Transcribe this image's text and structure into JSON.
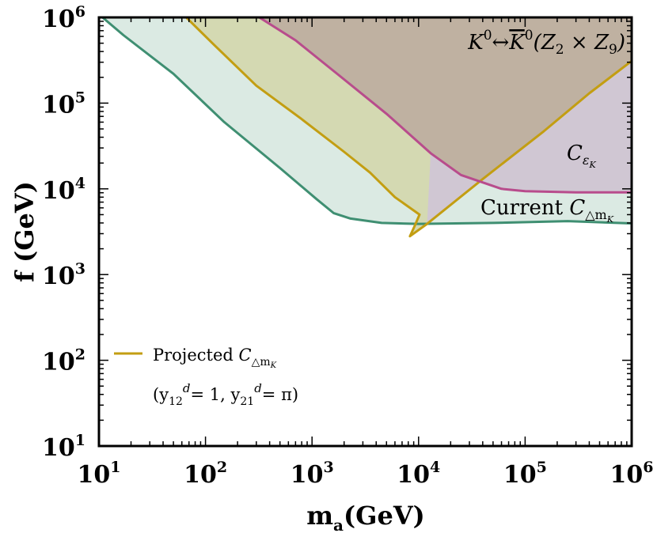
{
  "chart_data": {
    "type": "area",
    "title": "",
    "xlabel": "m",
    "xlabel_sub": "a",
    "xlabel_unit": "(GeV)",
    "ylabel": "f (GeV)",
    "xscale": "log",
    "yscale": "log",
    "xlim": [
      10,
      1000000
    ],
    "ylim": [
      10,
      1000000
    ],
    "x_tick_labels": [
      {
        "base": "10",
        "exp": "1",
        "value": 10
      },
      {
        "base": "10",
        "exp": "2",
        "value": 100
      },
      {
        "base": "10",
        "exp": "3",
        "value": 1000
      },
      {
        "base": "10",
        "exp": "4",
        "value": 10000
      },
      {
        "base": "10",
        "exp": "5",
        "value": 100000
      },
      {
        "base": "10",
        "exp": "6",
        "value": 1000000
      }
    ],
    "y_tick_labels": [
      {
        "base": "10",
        "exp": "1",
        "value": 10
      },
      {
        "base": "10",
        "exp": "2",
        "value": 100
      },
      {
        "base": "10",
        "exp": "3",
        "value": 1000
      },
      {
        "base": "10",
        "exp": "4",
        "value": 10000
      },
      {
        "base": "10",
        "exp": "5",
        "value": 100000
      },
      {
        "base": "10",
        "exp": "6",
        "value": 1000000
      }
    ],
    "grid": false,
    "legend_position": "bottom-left",
    "series": [
      {
        "name": "Current C_{Δm_K}",
        "line_color": "#3f8f72",
        "fill_color": "#dbeae3",
        "fill": "above",
        "points": [
          [
            10.8,
            1000000
          ],
          [
            17,
            620000
          ],
          [
            50,
            220000
          ],
          [
            150,
            60000
          ],
          [
            500,
            17500
          ],
          [
            1100,
            7600
          ],
          [
            1600,
            5200
          ],
          [
            2300,
            4500
          ],
          [
            4500,
            4000
          ],
          [
            10000,
            3900
          ],
          [
            50000,
            4000
          ],
          [
            250000,
            4200
          ],
          [
            1000000,
            3950
          ]
        ]
      },
      {
        "name": "Projected C_{Δm_K}",
        "line_color": "#c39e12",
        "fill_color": "#d4d9b2",
        "fill": "above",
        "points": [
          [
            66,
            1000000
          ],
          [
            120,
            480000
          ],
          [
            300,
            160000
          ],
          [
            800,
            65000
          ],
          [
            2000,
            27000
          ],
          [
            3500,
            15500
          ],
          [
            6000,
            8000
          ],
          [
            9000,
            5600
          ],
          [
            10200,
            5000
          ],
          [
            9200,
            3700
          ],
          [
            8300,
            2800
          ],
          [
            12000,
            3900
          ],
          [
            40000,
            13000
          ],
          [
            150000,
            47000
          ],
          [
            400000,
            130000
          ],
          [
            1000000,
            310000
          ]
        ]
      },
      {
        "name": "C_{ε_K}",
        "line_color": "#b84c8c",
        "fill_color": "#bfb1a1",
        "fill": "above",
        "points": [
          [
            320,
            1000000
          ],
          [
            700,
            540000
          ],
          [
            1800,
            210000
          ],
          [
            5000,
            75000
          ],
          [
            13000,
            26000
          ],
          [
            25000,
            14500
          ],
          [
            60000,
            10000
          ],
          [
            100000,
            9400
          ],
          [
            300000,
            9100
          ],
          [
            1000000,
            9100
          ]
        ]
      }
    ],
    "cepsk_region_fill": "#d0c7d3",
    "annotations": [
      {
        "id": "kk-mixing",
        "text_pre": "K",
        "sup1": "0",
        "arrow": "↔",
        "kbar": "K",
        "sup2": "0",
        "tail": "(Z",
        "sub_a": "2",
        "times": " × Z",
        "sub_b": "9",
        "close": ")"
      },
      {
        "id": "cepsk",
        "main": "C",
        "sub": "ε",
        "subsub": "K"
      },
      {
        "id": "current",
        "prefix": "Current ",
        "main": "C",
        "sub": "△m",
        "subsub": "K"
      }
    ],
    "legend": {
      "line_label_prefix": "Projected ",
      "line_label_main": "C",
      "line_label_sub": "△m",
      "line_label_subsub": "K",
      "params": {
        "open": "(y",
        "s1": "12",
        "sup1": "d",
        "eq1": "= 1, y",
        "s2": "21",
        "sup2": "d",
        "eq2": "= π)"
      }
    }
  }
}
